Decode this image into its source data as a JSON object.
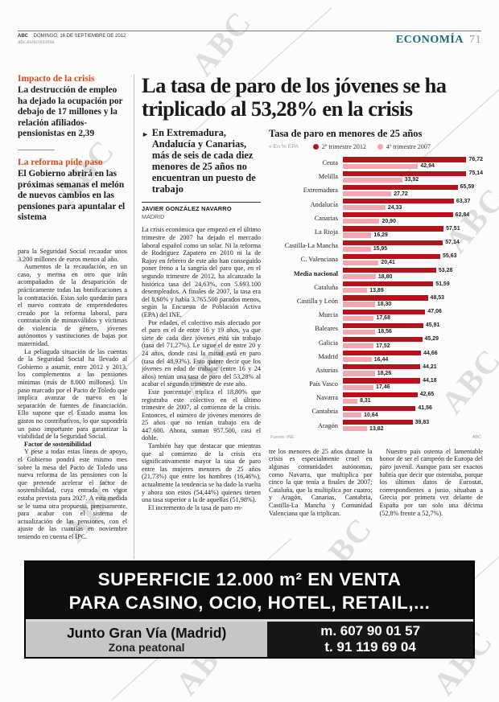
{
  "watermark": "ABC",
  "header": {
    "brand": "ABC",
    "date": "DOMINGO, 16 DE SEPTIEMBRE DE 2012",
    "site": "abc.es/economia",
    "section": "ECONOMÍA",
    "page_number": "71"
  },
  "sidebar": {
    "block1_kicker": "Impacto de la crisis",
    "block1_text": "La destrucción de empleo ha dejado la ocupación por debajo de 17 millones y la relación afiliados-pensionistas en 2,39",
    "block2_kicker": "La reforma pide paso",
    "block2_text": "El Gobierno abrirá en las próximas semanas el melón de nuevos cambios en las pensiones para apuntalar el sistema",
    "paragraphs": [
      "para la Seguridad Social recaudar unos 3.200 millones de euros menos al año.",
      "Aumentos de la recaudación, en un caso, y merma en otro que irán acompañados de la desaparición de prácticamente todas las bonificaciones a la contratación. Estas solo quedarán para el nuevo contrato de emprendedores creado por la reforma laboral, para contratación de minusválidos y víctimas de violencia de género, jóvenes autónomos y sustituciones de bajas por maternidad.",
      "La peliaguda situación de las cuentas de la Seguridad Social ha llevado al Gobierno a asumir, entre 2012 y 2013, los complementos a las pensiones mínimas (más de 8.000 millones). Un paso marcado por el Pacto de Toledo que implica avanzar de nuevo en la separación de fuentes de financiación. Ello supone que el Estado asuma los gastos no contributivos, lo que supondría un paso importante para garantizar la viabilidad de la Seguridad Social."
    ],
    "subhead": "Factor de sostenibilidad",
    "paragraphs2": [
      "Y pese a todas estas líneas de apoyo, el Gobierno pondrá este mismo mes sobre la mesa del Pacto de Toledo una nueva reforma de las pensiones con la que pretende acelerar el factor de sostenibilidad, cuya entrada en vigor estaba prevista para 2027. A esta medida se le suma otra propuesta, precisamente, para acabar con el sistema de actualización de las pensiones, con el ajuste de las cuantías en noviembre teniendo en cuenta el IPC."
    ]
  },
  "article": {
    "headline": "La tasa de paro de los jóvenes se ha triplicado al 53,28% en la crisis",
    "standfirst_marker": "►",
    "standfirst": "En Extremadura, Andalucía y Canarias, más de seis de cada diez menores de 25 años no encuentran un puesto de trabajo",
    "byline": "JAVIER GONZÁLEZ NAVARRO",
    "dateline": "MADRID",
    "col1": [
      "La crisis económica que empezó en el último trimestre de 2007 ha dejado el mercado laboral español como un solar. Ni la reforma de Rodríguez Zapatero en 2010 ni la de Rajoy en febrero de este año han conseguido poner freno a la sangría del paro que, en el segundo trimestre de 2012, ha alcanzado la histórica tasa del 24,63%, con 5.693.100 desempleados. A finales de 2007, la tasa era del 8,60% y había 3.765.500 parados menos, según la Encuesta de Población Activa (EPA) del INE.",
      "Por edades, el colectivo más afectado por el paro es el de entre 16 y 19 años, ya que siete de cada diez jóvenes está sin trabajo (tasa del 71,27%). Le sigue el de entre 20 y 24 años, donde casi la mitad está en paro (tasa del 48,93%). Esto quiere decir que los jóvenes en edad de trabajar (entre 16 y 24 años) tenían una tasa de paro del 53,28% al acabar el segundo trimestre de este año.",
      "Este porcentaje triplica el 18,80% que registraba este colectivo en el último trimestre de 2007, al comienzo de la crisis. Entonces, el número de jóvenes menores de 25 años que no tenían trabajo era de 447.600. Ahora, suman 957.500, casi el doble.",
      "También hay que destacar que mientras que al comienzo de la crisis era significativamente mayor la tasa de paro entre las mujeres menores de 25 años (21,73%) que entre los hombres (16,46%), actualmente la tendencia se ha dado la vuelta y ahora son estos (54,44%) quienes tienen una tasa superior a la de aquellas (51,98%).",
      "El incremento de la tasa de paro en-"
    ],
    "col2": [
      "tre los menores de 25 años durante la crisis es especialmente cruel en algunas comunidades autónomas, como Navarra, que multiplica por cinco la que tenía a finales de 2007; Cataluña, que la multiplica por cuatro; y Aragón, Canarias, Cantabria, Castilla-La Mancha y Comunidad Valenciana que la triplican."
    ],
    "col3": [
      "Nuestro país ostenta el lamentable honor de ser el campeón de Europa del paro juvenil. Aunque para ser exactos habría que decir que ostentaba, porque los últimos datos de Eurostat, correspondientes a junio, situaban a Grecia por primera vez delante de España por tan solo una décima (52,8% frente a 52,7%)."
    ]
  },
  "chart_data": {
    "type": "bar",
    "orientation": "horizontal",
    "title": "Tasa de paro en menores de 25 años",
    "unit_note": "» En % EPA",
    "xlim": [
      0,
      80
    ],
    "legend_position": "top",
    "highlight_category": "Media nacional",
    "source": "Fuente: INE",
    "credit": "ABC",
    "categories": [
      "Ceuta",
      "Melilla",
      "Extremadura",
      "Andalucía",
      "Canarias",
      "La Rioja",
      "Castilla-La Mancha",
      "C. Valenciana",
      "Media nacional",
      "Cataluña",
      "Castilla y León",
      "Murcia",
      "Baleares",
      "Galicia",
      "Madrid",
      "Asturias",
      "País Vasco",
      "Navarra",
      "Cantabria",
      "Aragón"
    ],
    "series": [
      {
        "name": "2º trimestre 2012",
        "color": "#b5121b",
        "values": [
          76.72,
          75.14,
          65.59,
          63.37,
          62.84,
          57.51,
          57.14,
          55.63,
          53.28,
          51.59,
          48.53,
          47.06,
          45.91,
          45.29,
          44.66,
          44.21,
          44.18,
          42.65,
          41.56,
          39.83
        ]
      },
      {
        "name": "4º trimestre 2007",
        "color": "#f4a7b0",
        "values": [
          42.94,
          33.92,
          27.72,
          24.33,
          20.9,
          16.29,
          15.95,
          20.41,
          18.8,
          13.89,
          18.3,
          17.68,
          18.56,
          17.52,
          16.44,
          18.26,
          17.46,
          8.31,
          10.64,
          13.82
        ]
      }
    ]
  },
  "ad": {
    "line1": "SUPERFICIE 12.000 m² EN VENTA",
    "line2": "PARA CASINO, OCIO, HOTEL, RETAIL,...",
    "location": "Junto Gran Vía (Madrid)",
    "location_sub": "Zona peatonal",
    "phone_mobile": "m. 607 90 01 57",
    "phone_landline": "t. 91 119 69 04"
  }
}
